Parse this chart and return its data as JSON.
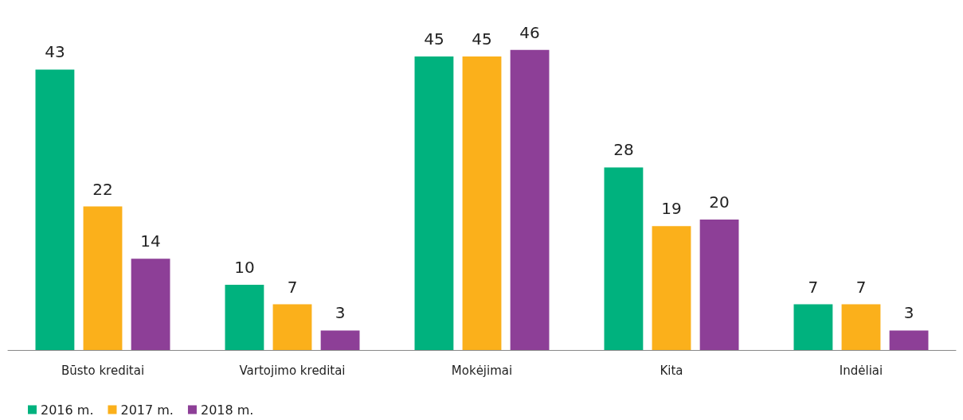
{
  "chart_data": {
    "type": "bar",
    "categories": [
      "Būsto kreditai",
      "Vartojimo kreditai",
      "Mokėjimai",
      "Kita",
      "Indėliai"
    ],
    "series": [
      {
        "name": "2016 m.",
        "color": "#00b27e",
        "values": [
          43,
          10,
          45,
          28,
          7
        ]
      },
      {
        "name": "2017 m.",
        "color": "#fbb01b",
        "values": [
          22,
          7,
          45,
          19,
          7
        ]
      },
      {
        "name": "2018 m.",
        "color": "#8d3f97",
        "values": [
          14,
          3,
          46,
          20,
          3
        ]
      }
    ],
    "data_labels": true,
    "legend": "bottom left"
  }
}
